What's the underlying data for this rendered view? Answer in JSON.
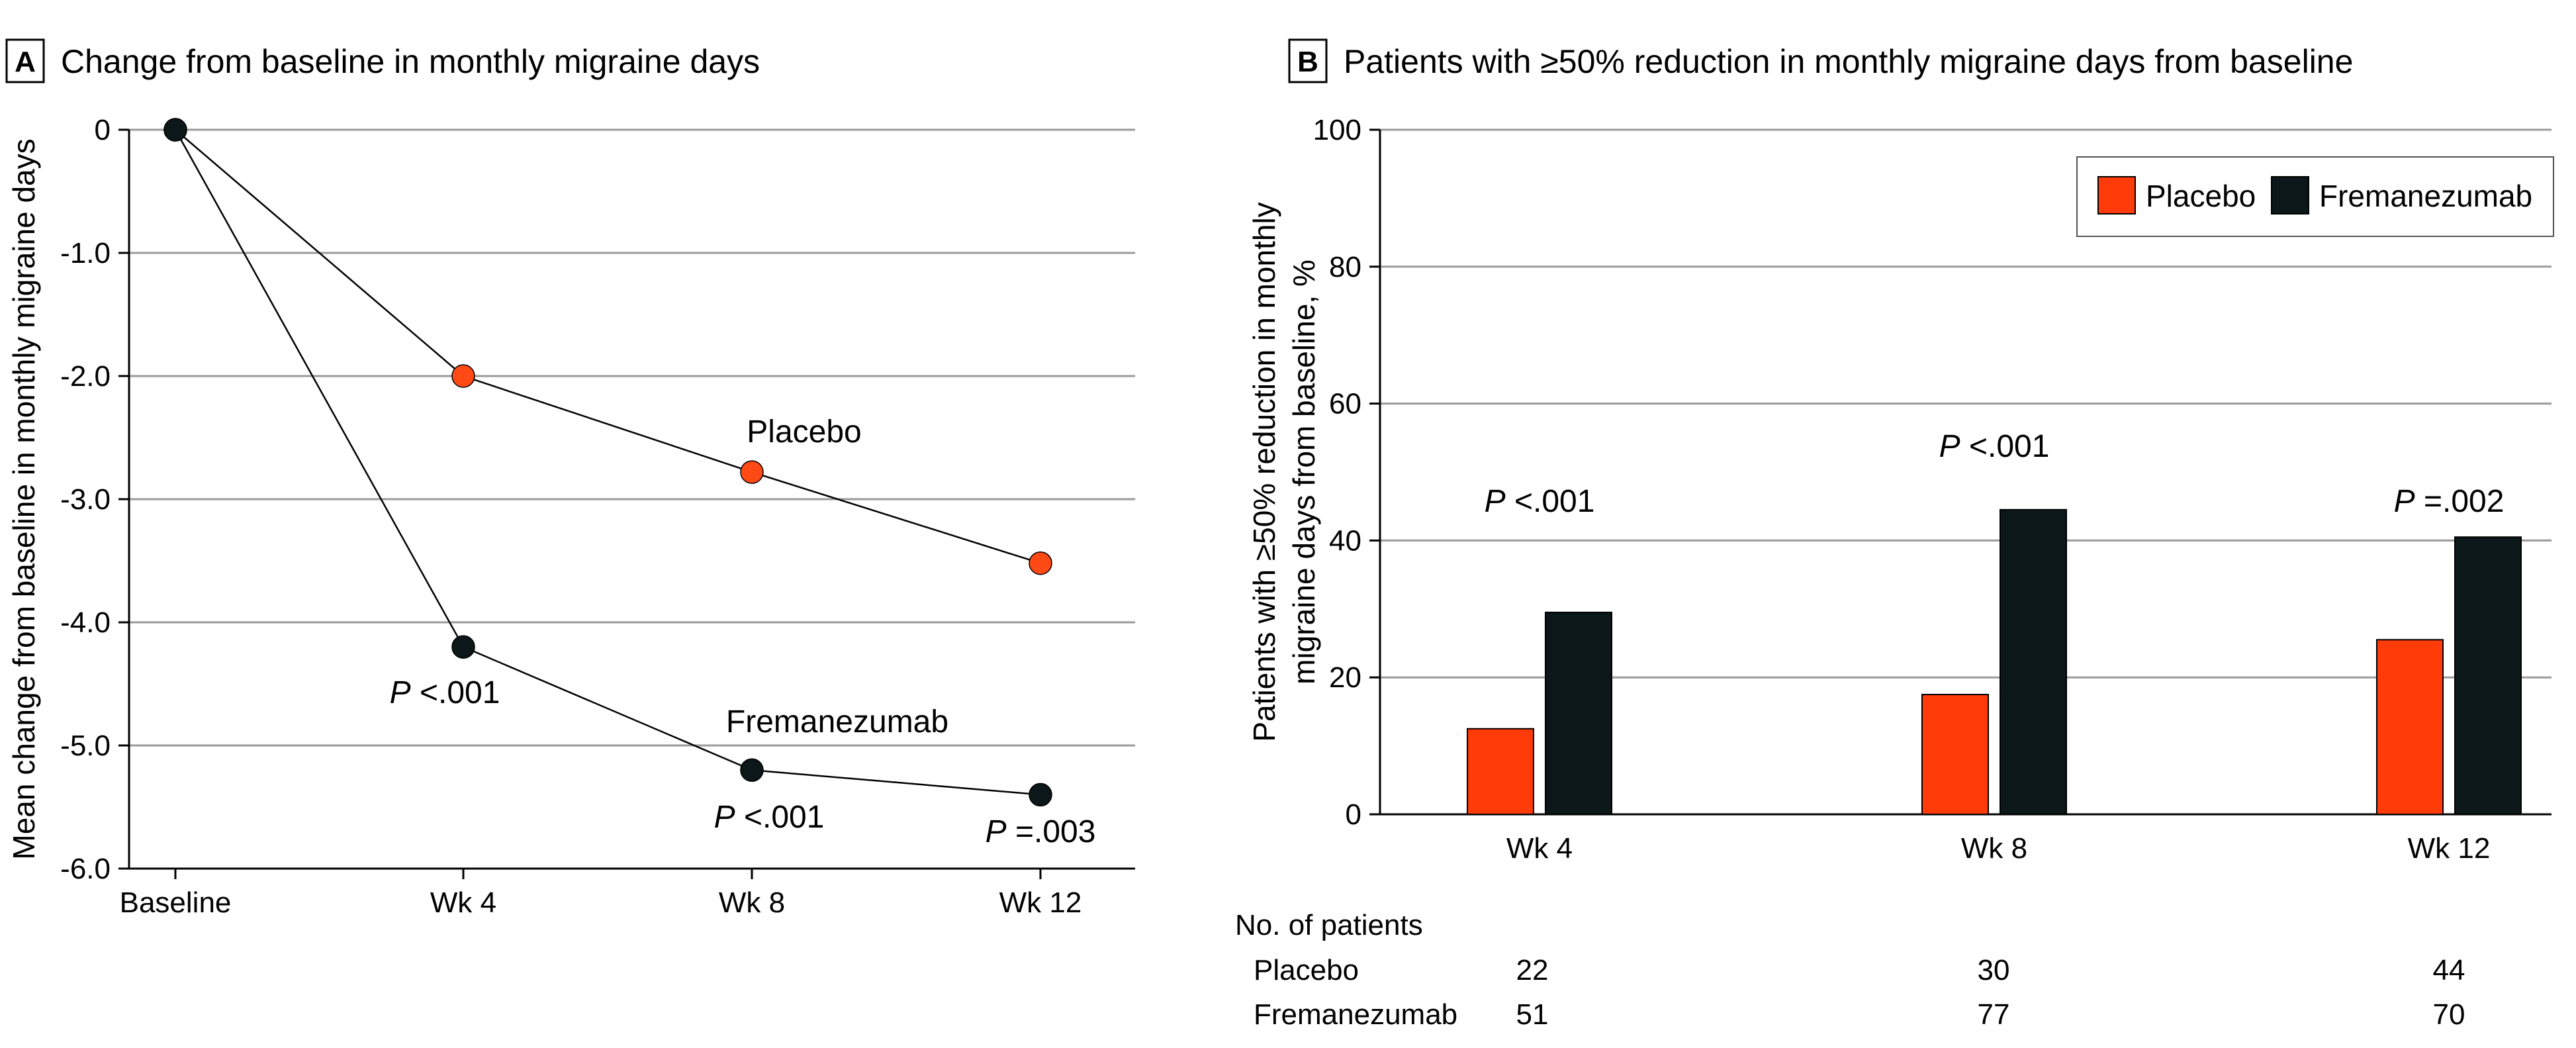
{
  "colors": {
    "placebo": "#FF3B0A",
    "fremanezumab": "#0B1718",
    "placebo_marker": "#FF4A16",
    "fremanezumab_marker": "#0B1718"
  },
  "chart_data": [
    {
      "panel": "A",
      "type": "line",
      "title": "Change from baseline in monthly migraine days",
      "ylabel": "Mean change from baseline in monthly migraine days",
      "xlabel": "",
      "categories": [
        "Baseline",
        "Wk 4",
        "Wk 8",
        "Wk 12"
      ],
      "ylim": [
        -6.0,
        0
      ],
      "yticks": [
        0,
        -1.0,
        -2.0,
        -3.0,
        -4.0,
        -5.0,
        -6.0
      ],
      "ytick_labels": [
        "0",
        "-1.0",
        "-2.0",
        "-3.0",
        "-4.0",
        "-5.0",
        "-6.0"
      ],
      "grid": true,
      "series": [
        {
          "name": "Placebo",
          "values": [
            0,
            -2.0,
            -2.78,
            -3.52
          ]
        },
        {
          "name": "Fremanezumab",
          "values": [
            0,
            -4.2,
            -5.2,
            -5.4
          ]
        }
      ],
      "annotations": [
        {
          "category": "Wk 4",
          "p": "P",
          "text": "<.001"
        },
        {
          "category": "Wk 8",
          "p": "P",
          "text": "<.001"
        },
        {
          "category": "Wk 12",
          "p": "P",
          "text": "=.003"
        }
      ]
    },
    {
      "panel": "B",
      "type": "bar",
      "title": "Patients with ≥50% reduction in monthly migraine days from baseline",
      "ylabel_lines": [
        "Patients with ≥50% reduction in monthly",
        "migraine days from baseline, %"
      ],
      "xlabel": "",
      "categories": [
        "Wk 4",
        "Wk 8",
        "Wk 12"
      ],
      "ylim": [
        0,
        100
      ],
      "yticks": [
        0,
        20,
        40,
        60,
        80,
        100
      ],
      "grid": true,
      "legend": "top-right",
      "series": [
        {
          "name": "Placebo",
          "values": [
            12.5,
            17.5,
            25.5
          ]
        },
        {
          "name": "Fremanezumab",
          "values": [
            29.5,
            44.5,
            40.5
          ]
        }
      ],
      "annotations": [
        {
          "category": "Wk 4",
          "p": "P",
          "text": "<.001"
        },
        {
          "category": "Wk 8",
          "p": "P",
          "text": "<.001"
        },
        {
          "category": "Wk 12",
          "p": "P",
          "text": "=.002"
        }
      ],
      "patients_table": {
        "header": "No. of patients",
        "rows": [
          {
            "label": "Placebo",
            "values": [
              "22",
              "30",
              "44"
            ]
          },
          {
            "label": "Fremanezumab",
            "values": [
              "51",
              "77",
              "70"
            ]
          }
        ]
      }
    }
  ]
}
